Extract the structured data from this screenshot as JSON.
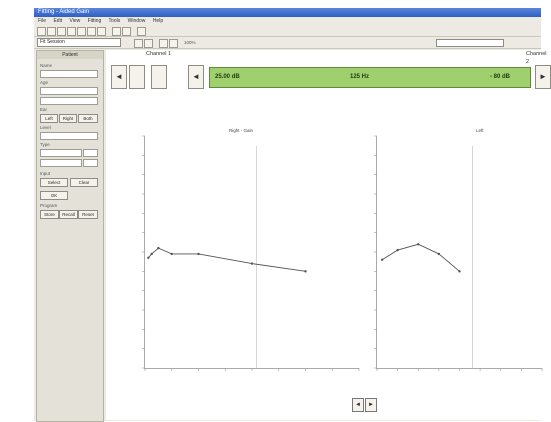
{
  "window": {
    "title": "Fitting - Aided Gain"
  },
  "menu": [
    "File",
    "Edit",
    "View",
    "Fitting",
    "Tools",
    "Window",
    "Help"
  ],
  "toolbar": {
    "combo_value": "Fit Session",
    "zoom_label": "100%"
  },
  "left_panel": {
    "header": "Patient",
    "field_labels": [
      "Name",
      "Age",
      "Ear",
      "Level",
      "Type",
      "Input",
      "Program"
    ],
    "buttons": [
      "Left",
      "Right",
      "Both",
      "Select",
      "Clear",
      "OK",
      "Store",
      "Recall",
      "Reset"
    ]
  },
  "channels": {
    "left_header": "Channel 1",
    "right_header": "Channel 2"
  },
  "nav": {
    "prev": "◄",
    "next": "►"
  },
  "lcd": {
    "left_value": "25.00 dB",
    "center_value": "125 Hz",
    "right_value": "- 80 dB"
  },
  "plots": [
    {
      "title": "Right - Gain"
    },
    {
      "title": "Left"
    }
  ],
  "pager": {
    "prev": "◄",
    "next": "►"
  },
  "colors": {
    "lcd": "#9fd06d",
    "titlebar": "#2d5fc7"
  },
  "chart_data": [
    {
      "type": "line",
      "x": [
        125,
        250,
        500,
        1000,
        2000,
        4000,
        6000
      ],
      "series": [
        {
          "values": [
            47,
            49,
            52,
            49,
            49,
            44,
            40
          ]
        }
      ],
      "xlim": [
        0,
        8000
      ],
      "ylim": [
        -10,
        110
      ],
      "grid": false
    },
    {
      "type": "line",
      "x": [
        250,
        1000,
        2000,
        3000,
        4000
      ],
      "series": [
        {
          "values": [
            46,
            51,
            54,
            49,
            40
          ]
        }
      ],
      "xlim": [
        0,
        8000
      ],
      "ylim": [
        -10,
        110
      ],
      "grid": false
    }
  ]
}
